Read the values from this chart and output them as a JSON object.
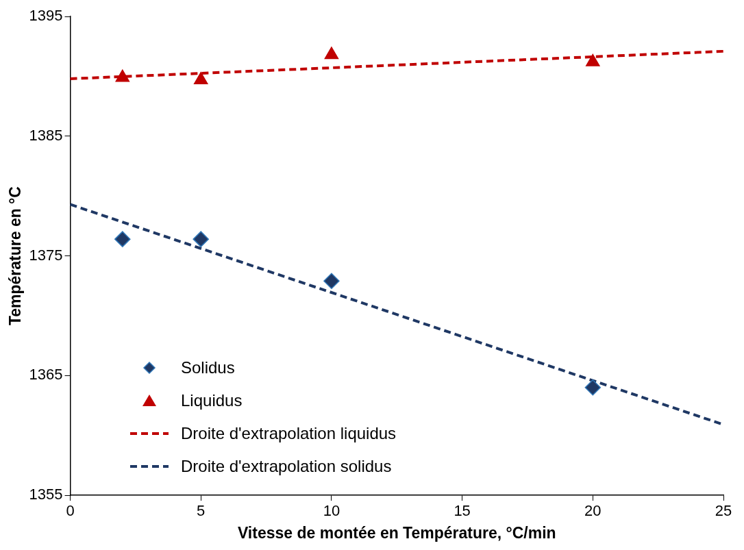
{
  "chart_data": {
    "type": "scatter",
    "xlabel": "Vitesse de montée en Température, °C/min",
    "ylabel": "Température en °C",
    "xlim": [
      0,
      25
    ],
    "xticks": [
      0,
      5,
      10,
      15,
      20,
      25
    ],
    "ylim": [
      1355,
      1395
    ],
    "yticks": [
      1355,
      1365,
      1375,
      1385,
      1395
    ],
    "grid": false,
    "legend": "bottom left",
    "series": [
      {
        "name": "Solidus",
        "type": "scatter",
        "marker": "diamond",
        "color": "#1f3864",
        "x": [
          2,
          5,
          10,
          20
        ],
        "values": [
          1376.4,
          1376.4,
          1372.9,
          1364.0
        ]
      },
      {
        "name": "Liquidus",
        "type": "scatter",
        "marker": "triangle",
        "color": "#c00000",
        "x": [
          2,
          5,
          10,
          20
        ],
        "values": [
          1389.9,
          1389.7,
          1391.8,
          1391.2
        ]
      },
      {
        "name": "Droite d'extrapolation liquidus",
        "type": "line",
        "marker": "none",
        "line_style": "dashed",
        "color": "#c00000",
        "x": [
          0,
          25
        ],
        "values": [
          1389.8,
          1392.1
        ]
      },
      {
        "name": "Droite d'extrapolation solidus",
        "type": "line",
        "marker": "none",
        "line_style": "dashed",
        "color": "#1f3864",
        "x": [
          0,
          25
        ],
        "values": [
          1379.3,
          1360.9
        ]
      }
    ]
  }
}
